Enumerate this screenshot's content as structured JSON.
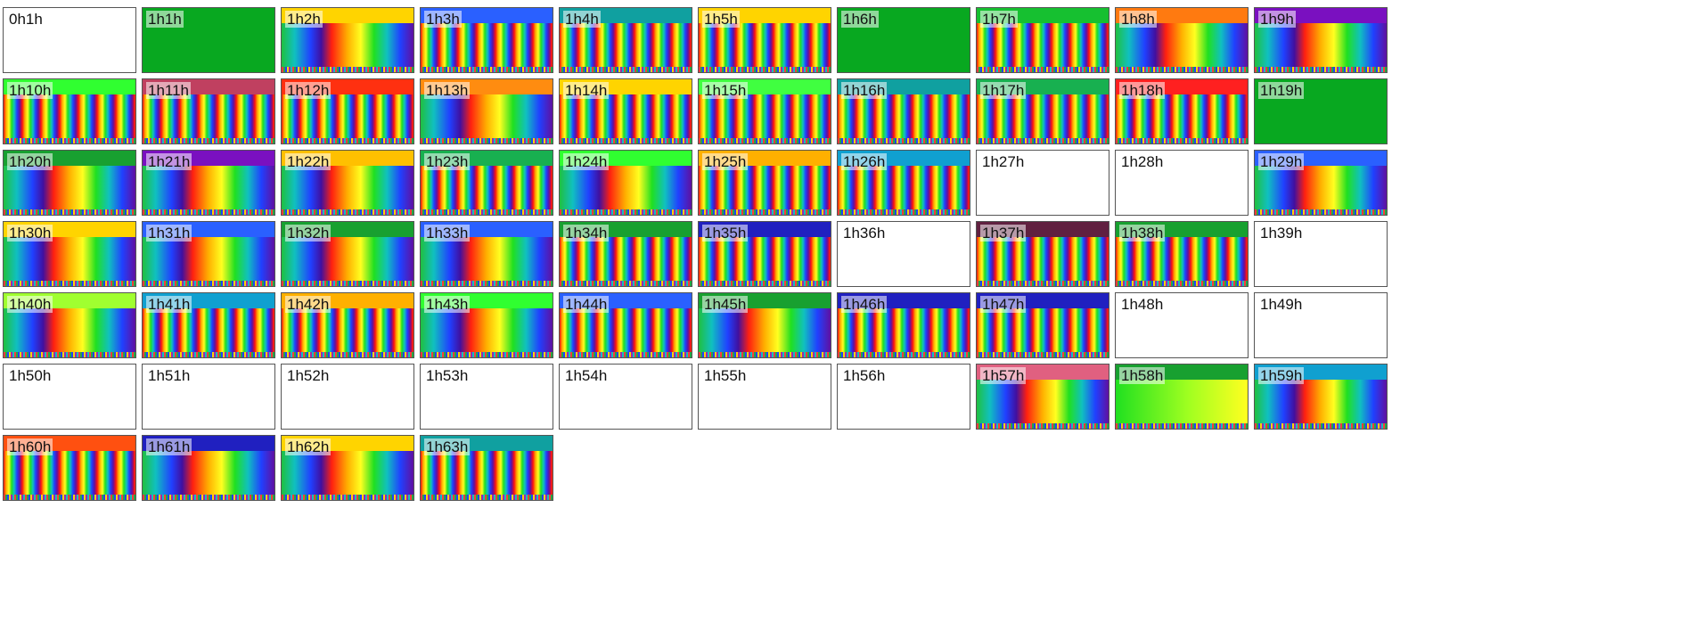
{
  "tiles": [
    {
      "label": "0h1h",
      "kind": "empty"
    },
    {
      "label": "1h1h",
      "kind": "green"
    },
    {
      "label": "1h2h",
      "kind": "wide",
      "top": "#ffd400"
    },
    {
      "label": "1h3h",
      "kind": "dense",
      "top": "#2a60ff"
    },
    {
      "label": "1h4h",
      "kind": "dense",
      "top": "#10a0a0"
    },
    {
      "label": "1h5h",
      "kind": "dense",
      "top": "#ffd400"
    },
    {
      "label": "1h6h",
      "kind": "green"
    },
    {
      "label": "1h7h",
      "kind": "dense",
      "top": "#16c030"
    },
    {
      "label": "1h8h",
      "kind": "wide",
      "top": "#ff7a10"
    },
    {
      "label": "1h9h",
      "kind": "wide",
      "top": "#7a10c0"
    },
    {
      "label": "1h10h",
      "kind": "dense",
      "top": "#30ff30"
    },
    {
      "label": "1h11h",
      "kind": "dense",
      "top": "#c04060"
    },
    {
      "label": "1h12h",
      "kind": "dense",
      "top": "#ff3010"
    },
    {
      "label": "1h13h",
      "kind": "wide",
      "top": "#ff8c10"
    },
    {
      "label": "1h14h",
      "kind": "dense",
      "top": "#ffd400"
    },
    {
      "label": "1h15h",
      "kind": "dense",
      "top": "#40ff40"
    },
    {
      "label": "1h16h",
      "kind": "dense",
      "top": "#10a0a0"
    },
    {
      "label": "1h17h",
      "kind": "dense",
      "top": "#18b050"
    },
    {
      "label": "1h18h",
      "kind": "dense",
      "top": "#ff2020"
    },
    {
      "label": "1h19h",
      "kind": "green"
    },
    {
      "label": "1h20h",
      "kind": "wide",
      "top": "#18a030"
    },
    {
      "label": "1h21h",
      "kind": "wide",
      "top": "#7a10c0"
    },
    {
      "label": "1h22h",
      "kind": "wide",
      "top": "#ffc000"
    },
    {
      "label": "1h23h",
      "kind": "dense",
      "top": "#18b050"
    },
    {
      "label": "1h24h",
      "kind": "wide",
      "top": "#30ff30"
    },
    {
      "label": "1h25h",
      "kind": "dense",
      "top": "#ffb000"
    },
    {
      "label": "1h26h",
      "kind": "dense",
      "top": "#10a0d0"
    },
    {
      "label": "1h27h",
      "kind": "empty"
    },
    {
      "label": "1h28h",
      "kind": "empty"
    },
    {
      "label": "1h29h",
      "kind": "wide",
      "top": "#2a60ff"
    },
    {
      "label": "1h30h",
      "kind": "wide",
      "top": "#ffd400"
    },
    {
      "label": "1h31h",
      "kind": "wide",
      "top": "#2a60ff"
    },
    {
      "label": "1h32h",
      "kind": "wide",
      "top": "#18a030"
    },
    {
      "label": "1h33h",
      "kind": "wide",
      "top": "#2a60ff"
    },
    {
      "label": "1h34h",
      "kind": "dense",
      "top": "#18a030"
    },
    {
      "label": "1h35h",
      "kind": "dense",
      "top": "#2020c0"
    },
    {
      "label": "1h36h",
      "kind": "empty"
    },
    {
      "label": "1h37h",
      "kind": "dense",
      "top": "#602040"
    },
    {
      "label": "1h38h",
      "kind": "dense",
      "top": "#18a030"
    },
    {
      "label": "1h39h",
      "kind": "empty"
    },
    {
      "label": "1h40h",
      "kind": "wide",
      "top": "#a0ff30"
    },
    {
      "label": "1h41h",
      "kind": "dense",
      "top": "#10a0d0"
    },
    {
      "label": "1h42h",
      "kind": "dense",
      "top": "#ffb000"
    },
    {
      "label": "1h43h",
      "kind": "wide",
      "top": "#30ff30"
    },
    {
      "label": "1h44h",
      "kind": "dense",
      "top": "#2a60ff"
    },
    {
      "label": "1h45h",
      "kind": "wide",
      "top": "#18a030"
    },
    {
      "label": "1h46h",
      "kind": "dense",
      "top": "#2020c0"
    },
    {
      "label": "1h47h",
      "kind": "dense",
      "top": "#2020c0"
    },
    {
      "label": "1h48h",
      "kind": "empty"
    },
    {
      "label": "1h49h",
      "kind": "empty"
    },
    {
      "label": "1h50h",
      "kind": "empty"
    },
    {
      "label": "1h51h",
      "kind": "empty"
    },
    {
      "label": "1h52h",
      "kind": "empty"
    },
    {
      "label": "1h53h",
      "kind": "empty"
    },
    {
      "label": "1h54h",
      "kind": "empty"
    },
    {
      "label": "1h55h",
      "kind": "empty"
    },
    {
      "label": "1h56h",
      "kind": "empty"
    },
    {
      "label": "1h57h",
      "kind": "wide",
      "top": "#e06080"
    },
    {
      "label": "1h58h",
      "kind": "green-yellow",
      "top": "#18a030"
    },
    {
      "label": "1h59h",
      "kind": "wide",
      "top": "#10a0d0"
    },
    {
      "label": "1h60h",
      "kind": "dense",
      "top": "#ff5010"
    },
    {
      "label": "1h61h",
      "kind": "wide",
      "top": "#2020c0"
    },
    {
      "label": "1h62h",
      "kind": "wide",
      "top": "#ffd400"
    },
    {
      "label": "1h63h",
      "kind": "dense",
      "top": "#10a0a0"
    }
  ],
  "colors": {
    "green": "#08a820",
    "border": "#555555"
  }
}
